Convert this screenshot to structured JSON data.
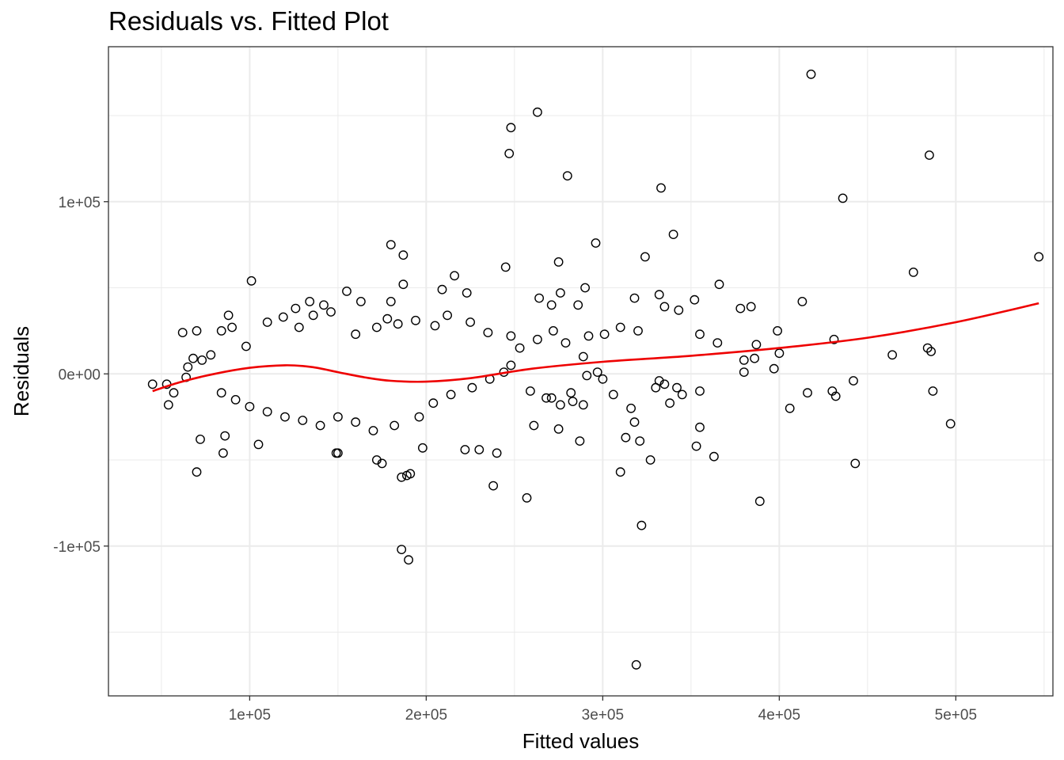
{
  "chart_data": {
    "type": "scatter",
    "title": "Residuals vs. Fitted Plot",
    "xlabel": "Fitted values",
    "ylabel": "Residuals",
    "xlim": [
      20000,
      555000
    ],
    "ylim": [
      -187000,
      190000
    ],
    "grid": true,
    "x_ticks": [
      {
        "value": 100000,
        "label": "1e+05"
      },
      {
        "value": 200000,
        "label": "2e+05"
      },
      {
        "value": 300000,
        "label": "3e+05"
      },
      {
        "value": 400000,
        "label": "4e+05"
      },
      {
        "value": 500000,
        "label": "5e+05"
      }
    ],
    "y_ticks": [
      {
        "value": -100000,
        "label": "-1e+05"
      },
      {
        "value": 0,
        "label": "0e+00"
      },
      {
        "value": 100000,
        "label": "1e+05"
      }
    ],
    "colors": {
      "points": "#000000",
      "smooth": "#ee0000",
      "grid": "#ebebeb",
      "panel_border": "#333333"
    },
    "points": [
      [
        248000,
        143000
      ],
      [
        263000,
        152000
      ],
      [
        247000,
        128000
      ],
      [
        280000,
        115000
      ],
      [
        333000,
        108000
      ],
      [
        418000,
        174000
      ],
      [
        485000,
        127000
      ],
      [
        436000,
        102000
      ],
      [
        180000,
        75000
      ],
      [
        187000,
        69000
      ],
      [
        275000,
        65000
      ],
      [
        296000,
        76000
      ],
      [
        324000,
        68000
      ],
      [
        340000,
        81000
      ],
      [
        245000,
        62000
      ],
      [
        101000,
        54000
      ],
      [
        187000,
        52000
      ],
      [
        216000,
        57000
      ],
      [
        209000,
        49000
      ],
      [
        290000,
        50000
      ],
      [
        366000,
        52000
      ],
      [
        476000,
        59000
      ],
      [
        547000,
        68000
      ],
      [
        155000,
        48000
      ],
      [
        223000,
        47000
      ],
      [
        264000,
        44000
      ],
      [
        276000,
        47000
      ],
      [
        318000,
        44000
      ],
      [
        332000,
        46000
      ],
      [
        352000,
        43000
      ],
      [
        163000,
        42000
      ],
      [
        180000,
        42000
      ],
      [
        271000,
        40000
      ],
      [
        286000,
        40000
      ],
      [
        335000,
        39000
      ],
      [
        343000,
        37000
      ],
      [
        378000,
        38000
      ],
      [
        384000,
        39000
      ],
      [
        413000,
        42000
      ],
      [
        484000,
        15000
      ],
      [
        486000,
        13000
      ],
      [
        464000,
        11000
      ],
      [
        431000,
        20000
      ],
      [
        399000,
        25000
      ],
      [
        387000,
        17000
      ],
      [
        400000,
        12000
      ],
      [
        397000,
        3000
      ],
      [
        386000,
        9000
      ],
      [
        380000,
        8000
      ],
      [
        380000,
        1000
      ],
      [
        365000,
        18000
      ],
      [
        355000,
        23000
      ],
      [
        442000,
        -4000
      ],
      [
        416000,
        -11000
      ],
      [
        430000,
        -10000
      ],
      [
        432000,
        -13000
      ],
      [
        406000,
        -20000
      ],
      [
        487000,
        -10000
      ],
      [
        497000,
        -29000
      ],
      [
        443000,
        -52000
      ],
      [
        389000,
        -74000
      ],
      [
        363000,
        -48000
      ],
      [
        353000,
        -42000
      ],
      [
        355000,
        -31000
      ],
      [
        355000,
        -10000
      ],
      [
        345000,
        -12000
      ],
      [
        342000,
        -8000
      ],
      [
        338000,
        -17000
      ],
      [
        335000,
        -6000
      ],
      [
        332000,
        -4000
      ],
      [
        330000,
        -8000
      ],
      [
        327000,
        -50000
      ],
      [
        322000,
        -88000
      ],
      [
        319000,
        -169000
      ],
      [
        321000,
        -39000
      ],
      [
        313000,
        -37000
      ],
      [
        310000,
        -57000
      ],
      [
        316000,
        -20000
      ],
      [
        318000,
        -28000
      ],
      [
        306000,
        -12000
      ],
      [
        300000,
        -3000
      ],
      [
        297000,
        1000
      ],
      [
        291000,
        -1000
      ],
      [
        289000,
        10000
      ],
      [
        289000,
        -18000
      ],
      [
        287000,
        -39000
      ],
      [
        283000,
        -16000
      ],
      [
        282000,
        -11000
      ],
      [
        276000,
        -18000
      ],
      [
        275000,
        -32000
      ],
      [
        271000,
        -14000
      ],
      [
        268000,
        -14000
      ],
      [
        261000,
        -30000
      ],
      [
        259000,
        -10000
      ],
      [
        257000,
        -72000
      ],
      [
        238000,
        -65000
      ],
      [
        240000,
        -46000
      ],
      [
        230000,
        -44000
      ],
      [
        222000,
        -44000
      ],
      [
        191000,
        -58000
      ],
      [
        189000,
        -59000
      ],
      [
        186000,
        -60000
      ],
      [
        186000,
        -102000
      ],
      [
        190000,
        -108000
      ],
      [
        175000,
        -52000
      ],
      [
        172000,
        -50000
      ],
      [
        198000,
        -43000
      ],
      [
        149000,
        -46000
      ],
      [
        150000,
        -46000
      ],
      [
        70000,
        -57000
      ],
      [
        72000,
        -38000
      ],
      [
        85000,
        -46000
      ],
      [
        86000,
        -36000
      ],
      [
        105000,
        -41000
      ],
      [
        45000,
        -6000
      ],
      [
        53000,
        -6000
      ],
      [
        54000,
        -18000
      ],
      [
        57000,
        -11000
      ],
      [
        64000,
        -2000
      ],
      [
        65000,
        4000
      ],
      [
        68000,
        9000
      ],
      [
        73000,
        8000
      ],
      [
        62000,
        24000
      ],
      [
        70000,
        25000
      ],
      [
        78000,
        11000
      ],
      [
        84000,
        25000
      ],
      [
        88000,
        34000
      ],
      [
        90000,
        27000
      ],
      [
        98000,
        16000
      ],
      [
        110000,
        30000
      ],
      [
        126000,
        38000
      ],
      [
        134000,
        42000
      ],
      [
        142000,
        40000
      ],
      [
        119000,
        33000
      ],
      [
        128000,
        27000
      ],
      [
        136000,
        34000
      ],
      [
        146000,
        36000
      ],
      [
        160000,
        23000
      ],
      [
        172000,
        27000
      ],
      [
        178000,
        32000
      ],
      [
        184000,
        29000
      ],
      [
        194000,
        31000
      ],
      [
        205000,
        28000
      ],
      [
        212000,
        34000
      ],
      [
        225000,
        30000
      ],
      [
        235000,
        24000
      ],
      [
        248000,
        22000
      ],
      [
        253000,
        15000
      ],
      [
        263000,
        20000
      ],
      [
        272000,
        25000
      ],
      [
        279000,
        18000
      ],
      [
        292000,
        22000
      ],
      [
        301000,
        23000
      ],
      [
        310000,
        27000
      ],
      [
        320000,
        25000
      ],
      [
        248000,
        5000
      ],
      [
        244000,
        1000
      ],
      [
        236000,
        -3000
      ],
      [
        226000,
        -8000
      ],
      [
        214000,
        -12000
      ],
      [
        204000,
        -17000
      ],
      [
        196000,
        -25000
      ],
      [
        182000,
        -30000
      ],
      [
        170000,
        -33000
      ],
      [
        160000,
        -28000
      ],
      [
        150000,
        -25000
      ],
      [
        140000,
        -30000
      ],
      [
        130000,
        -27000
      ],
      [
        120000,
        -25000
      ],
      [
        110000,
        -22000
      ],
      [
        100000,
        -19000
      ],
      [
        92000,
        -15000
      ],
      [
        84000,
        -11000
      ]
    ],
    "smooth": {
      "x": [
        45000,
        60000,
        80000,
        100000,
        120000,
        135000,
        150000,
        165000,
        180000,
        200000,
        225000,
        260000,
        300000,
        350000,
        400000,
        450000,
        500000,
        547000
      ],
      "y": [
        -10000,
        -5000,
        0,
        3500,
        5000,
        4000,
        1000,
        -2000,
        -4000,
        -4500,
        -2500,
        3000,
        7000,
        10500,
        15000,
        21000,
        30000,
        41000
      ]
    }
  }
}
